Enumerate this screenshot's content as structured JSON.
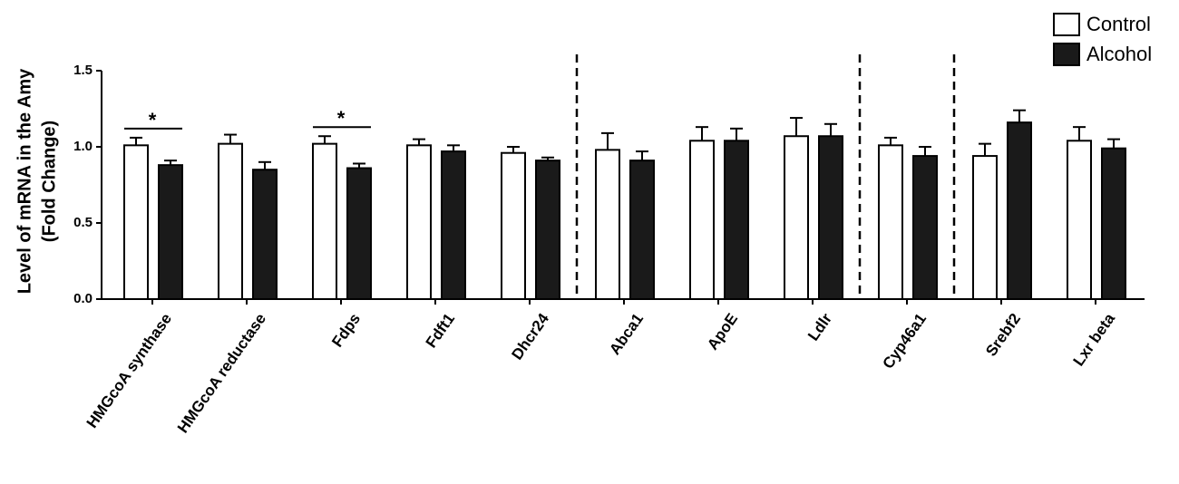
{
  "chart_data": {
    "type": "bar",
    "ylabel": [
      "Level of mRNA in the Amy",
      "(Fold Change)"
    ],
    "categories": [
      "HMGcoA synthase",
      "HMGcoA reductase",
      "Fdps",
      "Fdft1",
      "Dhcr24",
      "Abca1",
      "ApoE",
      "Ldlr",
      "Cyp46a1",
      "Srebf2",
      "Lxr beta"
    ],
    "series": [
      {
        "name": "Control",
        "color": "#ffffff",
        "values": [
          1.01,
          1.02,
          1.02,
          1.01,
          0.96,
          0.98,
          1.04,
          1.07,
          1.01,
          0.94,
          1.04
        ],
        "errors": [
          0.05,
          0.06,
          0.05,
          0.04,
          0.04,
          0.11,
          0.09,
          0.12,
          0.05,
          0.08,
          0.09
        ]
      },
      {
        "name": "Alcohol",
        "color": "#1a1a1a",
        "values": [
          0.88,
          0.85,
          0.86,
          0.97,
          0.91,
          0.91,
          1.04,
          1.07,
          0.94,
          1.16,
          0.99
        ],
        "errors": [
          0.03,
          0.05,
          0.03,
          0.04,
          0.02,
          0.06,
          0.08,
          0.08,
          0.06,
          0.08,
          0.06
        ]
      }
    ],
    "ylim": [
      0,
      1.5
    ],
    "yticks": [
      {
        "value": 0,
        "label": "0.0"
      },
      0.5,
      {
        "value": 1,
        "label": "1.0"
      },
      1.5
    ],
    "separators_after": [
      "Dhcr24",
      "Ldlr",
      "Cyp46a1"
    ],
    "annotations": [
      {
        "text": "*",
        "category": "HMGcoA synthase"
      },
      {
        "text": "*",
        "category": "Fdps"
      }
    ],
    "legend": "top-right",
    "grid": false
  }
}
